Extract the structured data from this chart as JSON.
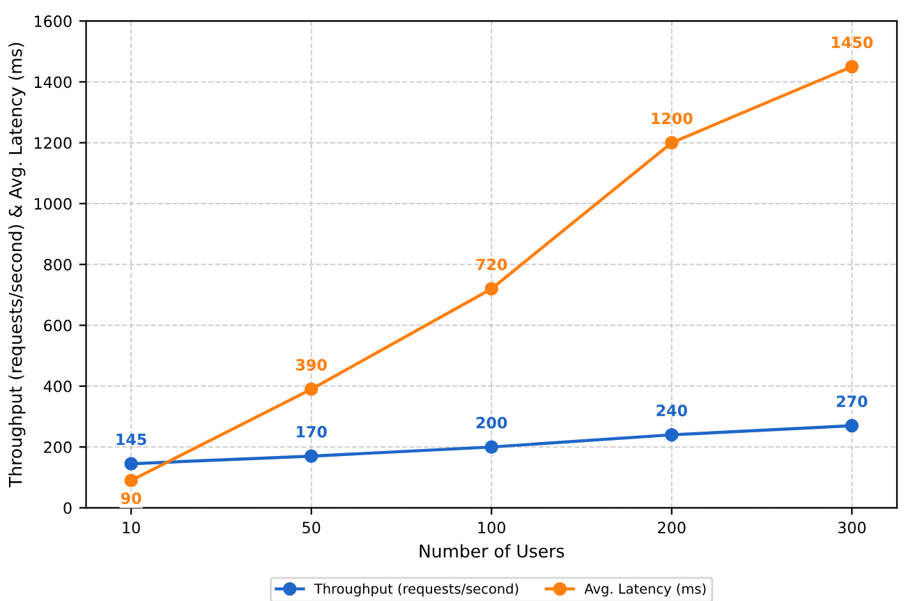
{
  "chart_data": {
    "type": "line",
    "xlabel": "Number of Users",
    "ylabel": "Throughput (requests/second) & Avg. Latency (ms)",
    "categories": [
      "10",
      "50",
      "100",
      "200",
      "300"
    ],
    "series": [
      {
        "name": "Throughput (requests/second)",
        "color": "#1f66c9",
        "values": [
          145,
          170,
          200,
          240,
          270
        ]
      },
      {
        "name": "Avg. Latency (ms)",
        "color": "#ff7f0e",
        "values": [
          90,
          390,
          720,
          1200,
          1450
        ]
      }
    ],
    "ylim": [
      0,
      1600
    ],
    "yticks": [
      0,
      200,
      400,
      600,
      800,
      1000,
      1200,
      1400,
      1600
    ],
    "grid": true,
    "legend": "bottom",
    "marker": "circle",
    "line_style": "solid",
    "data_labels": true
  }
}
